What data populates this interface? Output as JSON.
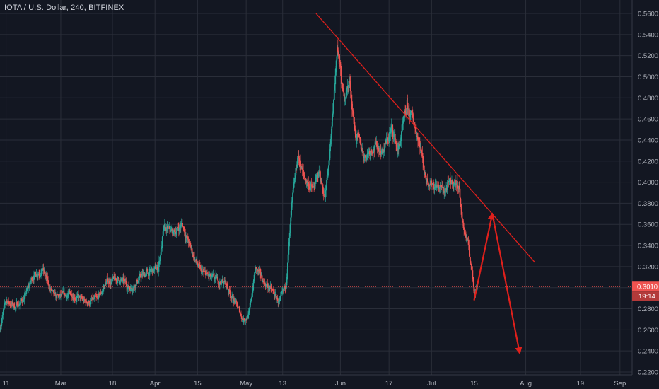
{
  "header": {
    "title": "IOTA / U.S. Dollar, 240, BITFINEX"
  },
  "colors": {
    "background": "#131722",
    "grid": "#2a2e39",
    "axis_text": "#b2b5be",
    "up_candle": "#26a69a",
    "down_candle": "#ef5350",
    "annotation": "#e0201c",
    "price_badge": "#ef5350"
  },
  "chart_data": {
    "type": "candlestick",
    "title": "IOTA / U.S. Dollar, 240, BITFINEX",
    "xlabel": "",
    "ylabel": "",
    "ylim": [
      0.2,
      0.565
    ],
    "y_axis": {
      "position": "right",
      "ticks": [
        0.56,
        0.54,
        0.52,
        0.5,
        0.48,
        0.46,
        0.44,
        0.42,
        0.4,
        0.38,
        0.36,
        0.34,
        0.32,
        0.3,
        0.28,
        0.26,
        0.24,
        0.22
      ],
      "tick_labels": [
        "0.5600",
        "0.5400",
        "0.5200",
        "0.5000",
        "0.4800",
        "0.4600",
        "0.4400",
        "0.4200",
        "0.4000",
        "0.3800",
        "0.3600",
        "0.3400",
        "0.3200",
        "0.3000",
        "0.2800",
        "0.2600",
        "0.2400",
        "0.2200"
      ]
    },
    "x_axis": {
      "start": "2019-02-09",
      "end": "2019-09-05",
      "ticks": [
        {
          "date": "2019-02-11",
          "label": "11"
        },
        {
          "date": "2019-03-01",
          "label": "Mar"
        },
        {
          "date": "2019-03-18",
          "label": "18"
        },
        {
          "date": "2019-04-01",
          "label": "Apr"
        },
        {
          "date": "2019-04-15",
          "label": "15"
        },
        {
          "date": "2019-05-01",
          "label": "May"
        },
        {
          "date": "2019-05-13",
          "label": "13"
        },
        {
          "date": "2019-06-01",
          "label": "Jun"
        },
        {
          "date": "2019-06-17",
          "label": "17"
        },
        {
          "date": "2019-07-01",
          "label": "Jul"
        },
        {
          "date": "2019-07-15",
          "label": "15"
        },
        {
          "date": "2019-08-01",
          "label": "Aug"
        },
        {
          "date": "2019-08-19",
          "label": "19"
        },
        {
          "date": "2019-09-01",
          "label": "Sep"
        }
      ]
    },
    "price_path": [
      [
        "2019-02-09",
        0.262
      ],
      [
        "2019-02-11",
        0.288
      ],
      [
        "2019-02-14",
        0.282
      ],
      [
        "2019-02-17",
        0.29
      ],
      [
        "2019-02-20",
        0.312
      ],
      [
        "2019-02-23",
        0.318
      ],
      [
        "2019-02-25",
        0.302
      ],
      [
        "2019-02-27",
        0.29
      ],
      [
        "2019-03-02",
        0.292
      ],
      [
        "2019-03-05",
        0.294
      ],
      [
        "2019-03-09",
        0.286
      ],
      [
        "2019-03-13",
        0.288
      ],
      [
        "2019-03-16",
        0.305
      ],
      [
        "2019-03-20",
        0.308
      ],
      [
        "2019-03-24",
        0.3
      ],
      [
        "2019-03-28",
        0.312
      ],
      [
        "2019-04-02",
        0.318
      ],
      [
        "2019-04-04",
        0.355
      ],
      [
        "2019-04-07",
        0.352
      ],
      [
        "2019-04-10",
        0.36
      ],
      [
        "2019-04-13",
        0.335
      ],
      [
        "2019-04-16",
        0.315
      ],
      [
        "2019-04-20",
        0.308
      ],
      [
        "2019-04-24",
        0.305
      ],
      [
        "2019-04-27",
        0.288
      ],
      [
        "2019-04-30",
        0.27
      ],
      [
        "2019-05-02",
        0.275
      ],
      [
        "2019-05-04",
        0.318
      ],
      [
        "2019-05-07",
        0.305
      ],
      [
        "2019-05-10",
        0.295
      ],
      [
        "2019-05-12",
        0.285
      ],
      [
        "2019-05-14",
        0.3
      ],
      [
        "2019-05-16",
        0.375
      ],
      [
        "2019-05-18",
        0.425
      ],
      [
        "2019-05-20",
        0.405
      ],
      [
        "2019-05-23",
        0.392
      ],
      [
        "2019-05-25",
        0.41
      ],
      [
        "2019-05-27",
        0.385
      ],
      [
        "2019-05-29",
        0.44
      ],
      [
        "2019-05-31",
        0.53
      ],
      [
        "2019-06-02",
        0.48
      ],
      [
        "2019-06-04",
        0.495
      ],
      [
        "2019-06-06",
        0.445
      ],
      [
        "2019-06-09",
        0.425
      ],
      [
        "2019-06-12",
        0.435
      ],
      [
        "2019-06-15",
        0.43
      ],
      [
        "2019-06-18",
        0.45
      ],
      [
        "2019-06-20",
        0.43
      ],
      [
        "2019-06-23",
        0.47
      ],
      [
        "2019-06-25",
        0.458
      ],
      [
        "2019-06-27",
        0.44
      ],
      [
        "2019-06-29",
        0.405
      ],
      [
        "2019-07-02",
        0.398
      ],
      [
        "2019-07-05",
        0.392
      ],
      [
        "2019-07-08",
        0.4
      ],
      [
        "2019-07-10",
        0.398
      ],
      [
        "2019-07-11",
        0.365
      ],
      [
        "2019-07-13",
        0.34
      ],
      [
        "2019-07-14",
        0.322
      ],
      [
        "2019-07-15",
        0.298
      ],
      [
        "2019-07-16",
        0.301
      ]
    ],
    "series": [
      {
        "name": "",
        "type": "trendline",
        "points": [
          [
            "2019-05-24",
            0.56
          ],
          [
            "2019-08-04",
            0.324
          ]
        ]
      },
      {
        "name": "",
        "type": "arrow",
        "points": [
          [
            "2019-07-15",
            0.288
          ],
          [
            "2019-07-21",
            0.37
          ]
        ]
      },
      {
        "name": "",
        "type": "arrow",
        "points": [
          [
            "2019-07-21",
            0.37
          ],
          [
            "2019-07-30",
            0.238
          ]
        ]
      },
      {
        "name": "",
        "type": "hline",
        "value": 0.301
      }
    ],
    "current_price": {
      "value": 0.301,
      "label": "0.3010",
      "countdown": "19:14"
    },
    "grid": true,
    "legend": "none"
  }
}
